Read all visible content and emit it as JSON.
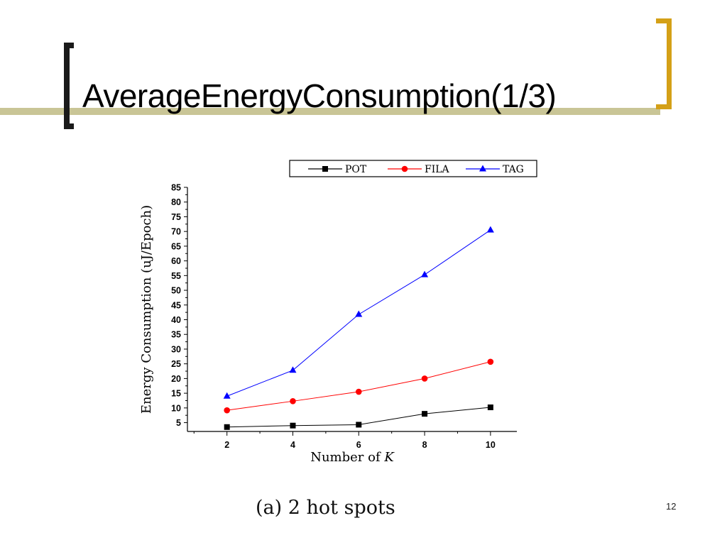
{
  "slide": {
    "title": "AverageEnergyConsumption(1/3)",
    "caption": "(a) 2 hot spots",
    "page_number": "12"
  },
  "chart_data": {
    "type": "line",
    "xlabel_prefix": "Number of ",
    "xlabel_var": "K",
    "ylabel": "Energy Consumption (uJ/Epoch)",
    "x": [
      2,
      4,
      6,
      8,
      10
    ],
    "xlim": [
      0.8,
      10.8
    ],
    "ylim": [
      2,
      85
    ],
    "y_ticks": [
      5,
      10,
      15,
      20,
      25,
      30,
      35,
      40,
      45,
      50,
      55,
      60,
      65,
      70,
      75,
      80,
      85
    ],
    "legend_position": "top",
    "grid": false,
    "series": [
      {
        "name": "POT",
        "color": "#000000",
        "marker": "square",
        "values": [
          3.5,
          4.0,
          4.3,
          8.0,
          10.2
        ]
      },
      {
        "name": "FILA",
        "color": "#ff0000",
        "marker": "circle",
        "values": [
          9.2,
          12.3,
          15.5,
          20.0,
          25.7
        ]
      },
      {
        "name": "TAG",
        "color": "#0000ff",
        "marker": "triangle",
        "values": [
          14.0,
          22.8,
          41.8,
          55.3,
          70.5
        ]
      }
    ]
  }
}
